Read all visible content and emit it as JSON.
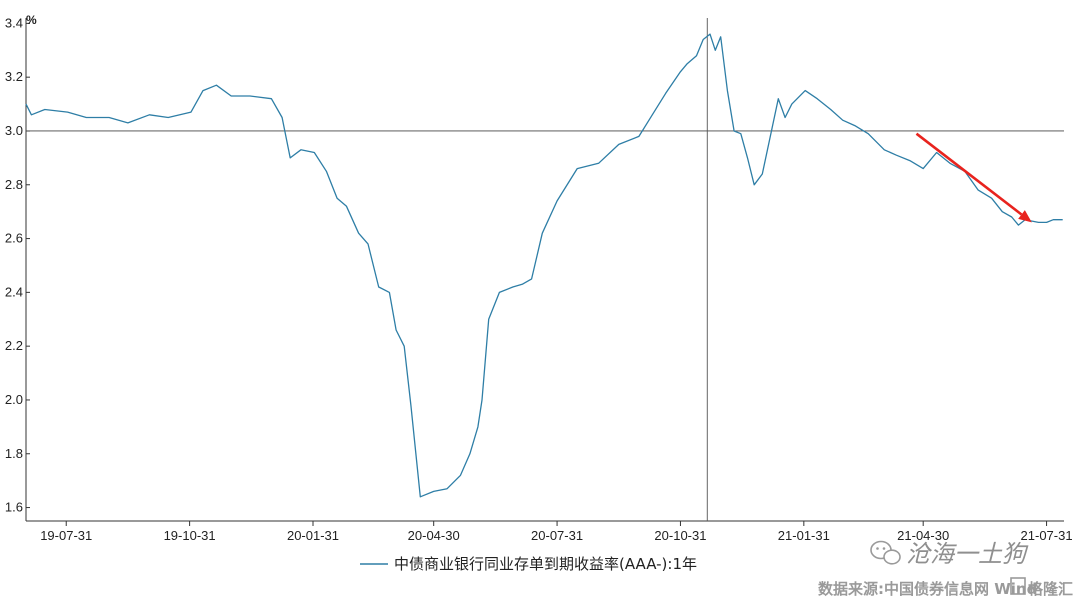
{
  "chart_data": {
    "type": "line",
    "y_unit": "%",
    "ylim": [
      1.55,
      3.42
    ],
    "y_ticks": [
      "1.6",
      "1.8",
      "2.0",
      "2.2",
      "2.4",
      "2.6",
      "2.8",
      "3.0",
      "3.2",
      "3.4"
    ],
    "xlim": [
      "2019-07-01",
      "2021-08-13"
    ],
    "x_ticks": [
      {
        "date": "2019-07-31",
        "label": "19-07-31"
      },
      {
        "date": "2019-10-31",
        "label": "19-10-31"
      },
      {
        "date": "2020-01-31",
        "label": "20-01-31"
      },
      {
        "date": "2020-04-30",
        "label": "20-04-30"
      },
      {
        "date": "2020-07-31",
        "label": "20-07-31"
      },
      {
        "date": "2020-10-31",
        "label": "20-10-31"
      },
      {
        "date": "2021-01-31",
        "label": "21-01-31"
      },
      {
        "date": "2021-04-30",
        "label": "21-04-30"
      },
      {
        "date": "2021-07-31",
        "label": "21-07-31"
      }
    ],
    "reference_lines": {
      "horizontal_y": 3.0,
      "vertical_x": "2020-11-20"
    },
    "series": [
      {
        "name": "中债商业银行同业存单到期收益率(AAA-):1年",
        "color": "#2e7ea6",
        "x": [
          "2019-07-01",
          "2019-07-05",
          "2019-07-15",
          "2019-08-01",
          "2019-08-15",
          "2019-09-01",
          "2019-09-15",
          "2019-10-01",
          "2019-10-15",
          "2019-11-01",
          "2019-11-10",
          "2019-11-20",
          "2019-12-01",
          "2019-12-15",
          "2019-12-31",
          "2020-01-08",
          "2020-01-14",
          "2020-01-22",
          "2020-02-01",
          "2020-02-10",
          "2020-02-18",
          "2020-02-25",
          "2020-03-05",
          "2020-03-12",
          "2020-03-20",
          "2020-03-28",
          "2020-04-02",
          "2020-04-08",
          "2020-04-13",
          "2020-04-20",
          "2020-04-30",
          "2020-05-10",
          "2020-05-20",
          "2020-05-27",
          "2020-06-02",
          "2020-06-05",
          "2020-06-10",
          "2020-06-18",
          "2020-06-28",
          "2020-07-05",
          "2020-07-12",
          "2020-07-20",
          "2020-07-31",
          "2020-08-15",
          "2020-08-31",
          "2020-09-15",
          "2020-09-30",
          "2020-10-10",
          "2020-10-20",
          "2020-10-31",
          "2020-11-05",
          "2020-11-12",
          "2020-11-17",
          "2020-11-22",
          "2020-11-26",
          "2020-11-30",
          "2020-12-05",
          "2020-12-10",
          "2020-12-15",
          "2020-12-20",
          "2020-12-25",
          "2020-12-31",
          "2021-01-06",
          "2021-01-12",
          "2021-01-17",
          "2021-01-22",
          "2021-02-01",
          "2021-02-10",
          "2021-02-20",
          "2021-03-01",
          "2021-03-10",
          "2021-03-20",
          "2021-04-01",
          "2021-04-10",
          "2021-04-20",
          "2021-04-30",
          "2021-05-10",
          "2021-05-20",
          "2021-05-31",
          "2021-06-10",
          "2021-06-20",
          "2021-06-28",
          "2021-07-05",
          "2021-07-10",
          "2021-07-15",
          "2021-07-25",
          "2021-07-31",
          "2021-08-05",
          "2021-08-12"
        ],
        "values": [
          3.1,
          3.06,
          3.08,
          3.07,
          3.05,
          3.05,
          3.03,
          3.06,
          3.05,
          3.07,
          3.15,
          3.17,
          3.13,
          3.13,
          3.12,
          3.05,
          2.9,
          2.93,
          2.92,
          2.85,
          2.75,
          2.72,
          2.62,
          2.58,
          2.42,
          2.4,
          2.26,
          2.2,
          1.98,
          1.64,
          1.66,
          1.67,
          1.72,
          1.8,
          1.9,
          2.0,
          2.3,
          2.4,
          2.42,
          2.43,
          2.45,
          2.62,
          2.74,
          2.86,
          2.88,
          2.95,
          2.98,
          3.06,
          3.14,
          3.22,
          3.25,
          3.28,
          3.34,
          3.36,
          3.3,
          3.35,
          3.15,
          3.0,
          2.99,
          2.9,
          2.8,
          2.84,
          2.98,
          3.12,
          3.05,
          3.1,
          3.15,
          3.12,
          3.08,
          3.04,
          3.02,
          2.99,
          2.93,
          2.91,
          2.89,
          2.86,
          2.92,
          2.88,
          2.85,
          2.78,
          2.75,
          2.7,
          2.68,
          2.65,
          2.67,
          2.66,
          2.66,
          2.67,
          2.67
        ]
      }
    ],
    "annotations": {
      "arrow": {
        "from": {
          "x": "2021-04-25",
          "y": 2.99
        },
        "to": {
          "x": "2021-07-20",
          "y": 2.66
        },
        "color": "#e8231e"
      }
    },
    "grid": false,
    "legend_position": "bottom"
  },
  "watermark": {
    "name_text": "沧海一土狗",
    "source_text": "数据来源:中国债券信息网 Wind",
    "corner_text": "格隆汇",
    "wechat_icon": "wechat-icon"
  }
}
